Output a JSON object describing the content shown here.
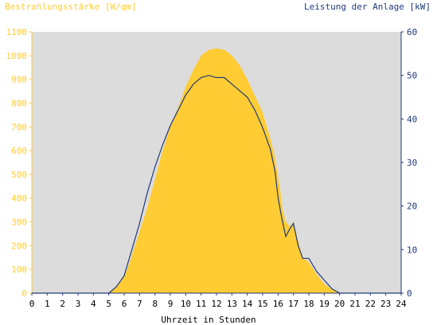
{
  "chart_data": {
    "type": "area",
    "title_left": "Bestrahlungsstärke [W/qm]",
    "title_right": "Leistung der Anlage [kW]",
    "xlabel": "Uhrzeit in Stunden",
    "x_ticks": [
      "0",
      "1",
      "2",
      "3",
      "4",
      "5",
      "6",
      "7",
      "8",
      "9",
      "10",
      "11",
      "12",
      "13",
      "14",
      "15",
      "16",
      "17",
      "18",
      "19",
      "20",
      "21",
      "22",
      "23",
      "24"
    ],
    "y_left_ticks": [
      "0",
      "100",
      "200",
      "300",
      "400",
      "500",
      "600",
      "700",
      "800",
      "900",
      "1000",
      "1100"
    ],
    "y_right_ticks": [
      "0",
      "10",
      "20",
      "30",
      "40",
      "50",
      "60"
    ],
    "xlim": [
      0,
      24
    ],
    "ylim_left": [
      0,
      1100
    ],
    "ylim_right": [
      0,
      60
    ],
    "grid": false,
    "colors": {
      "plot_background": "#dcdcdc",
      "irradiance_fill": "#ffcc33",
      "power_line": "#1f3a7a",
      "left_axis": "#ffcc33",
      "right_axis": "#1f3a7a"
    },
    "series": [
      {
        "axis": "left",
        "style": "area",
        "x": [
          0,
          4.9,
          5.2,
          5.5,
          5.8,
          6.2,
          6.6,
          7.0,
          7.5,
          8.0,
          8.5,
          9.0,
          9.5,
          10.0,
          10.5,
          11.0,
          11.5,
          12.0,
          12.5,
          13.0,
          13.5,
          14.0,
          14.5,
          15.0,
          15.5,
          15.8,
          16.1,
          16.3,
          16.5,
          16.8,
          17.0,
          17.3,
          17.6,
          18.0,
          18.5,
          19.0,
          19.5,
          19.9,
          20.2,
          24
        ],
        "values": [
          0,
          0,
          10,
          25,
          50,
          100,
          180,
          260,
          360,
          480,
          600,
          700,
          780,
          870,
          940,
          1000,
          1025,
          1030,
          1025,
          1000,
          960,
          900,
          830,
          760,
          650,
          570,
          450,
          350,
          300,
          280,
          300,
          220,
          150,
          130,
          80,
          40,
          15,
          5,
          0,
          0
        ]
      },
      {
        "axis": "right",
        "style": "line",
        "x": [
          0,
          5.0,
          5.5,
          6.0,
          6.5,
          7.0,
          7.5,
          8.0,
          8.5,
          9.0,
          9.5,
          10.0,
          10.5,
          11.0,
          11.5,
          12.0,
          12.5,
          13.0,
          13.5,
          14.0,
          14.5,
          15.0,
          15.5,
          15.8,
          16.0,
          16.2,
          16.5,
          16.8,
          17.0,
          17.3,
          17.6,
          18.0,
          18.5,
          19.0,
          19.5,
          20.0,
          24
        ],
        "values": [
          0,
          0,
          1.5,
          4,
          10,
          16,
          23,
          29,
          34,
          38.5,
          42,
          45.5,
          48,
          49.5,
          50,
          49.5,
          49.5,
          48,
          46.5,
          45,
          42,
          38,
          33,
          28,
          22,
          18,
          13,
          15,
          16,
          11,
          8,
          8,
          5,
          3,
          1,
          0,
          0
        ]
      }
    ]
  }
}
